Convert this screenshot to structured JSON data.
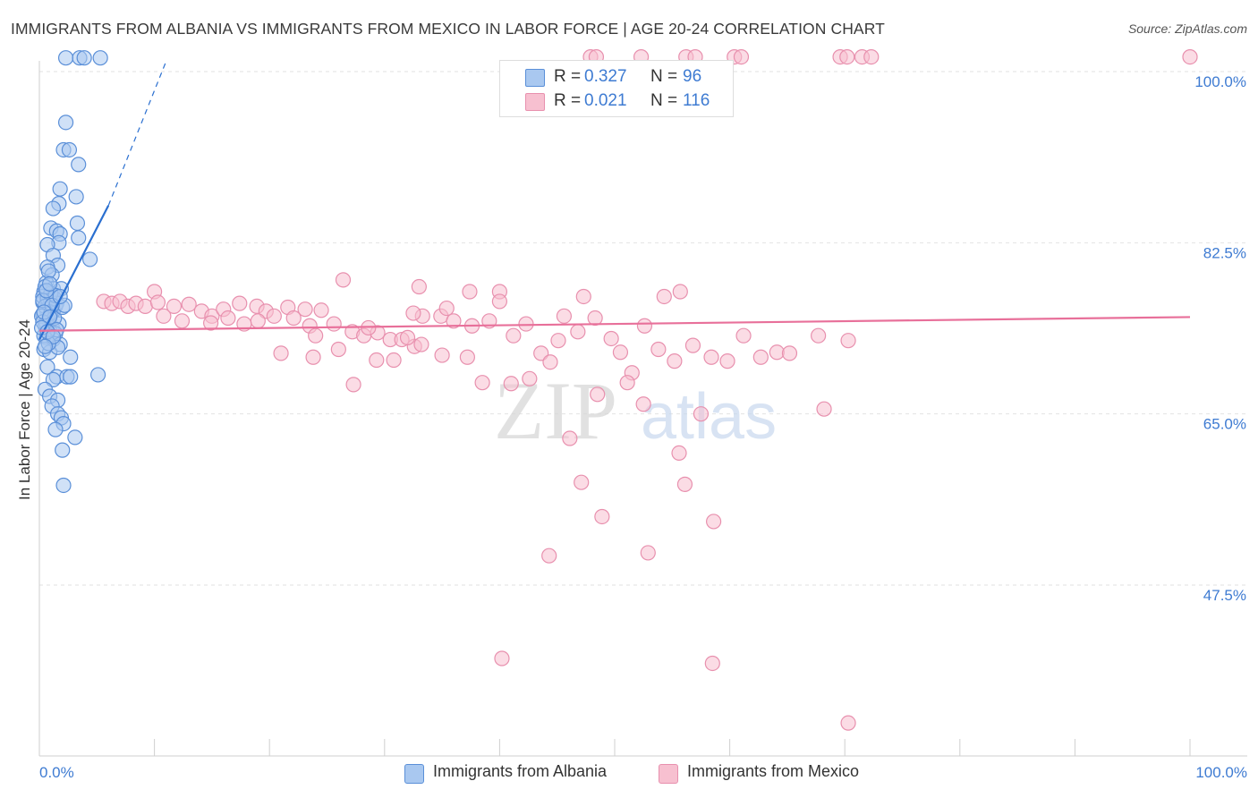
{
  "title": "IMMIGRANTS FROM ALBANIA VS IMMIGRANTS FROM MEXICO IN LABOR FORCE | AGE 20-24 CORRELATION CHART",
  "source": "Source: ZipAtlas.com",
  "watermark": {
    "zip": "ZIP",
    "atlas": "atlas"
  },
  "colors": {
    "albania_fill": "#a9c8f0",
    "albania_stroke": "#5a8fd8",
    "albania_line": "#2a6fd0",
    "mexico_fill": "#f7c0d0",
    "mexico_stroke": "#e890ae",
    "mexico_line": "#e8709a",
    "axis_text": "#3e7bd2",
    "grid": "#e2e2e2"
  },
  "legend_top": [
    {
      "r_label": "R =",
      "r_value": "0.327",
      "n_label": "N =",
      "n_value": "96"
    },
    {
      "r_label": "R =",
      "r_value": "0.021",
      "n_label": "N =",
      "n_value": "116"
    }
  ],
  "legend_bottom": [
    "Immigrants from Albania",
    "Immigrants from Mexico"
  ],
  "chart_data": {
    "type": "scatter",
    "title": "IMMIGRANTS FROM ALBANIA VS IMMIGRANTS FROM MEXICO IN LABOR FORCE | AGE 20-24 CORRELATION CHART",
    "xlabel": "",
    "ylabel": "In Labor Force | Age 20-24",
    "xlim": [
      0,
      100
    ],
    "ylim": [
      29,
      102
    ],
    "x_tick_labels": [
      "0.0%",
      "100.0%"
    ],
    "y_ticks": [
      47.5,
      65.0,
      82.5,
      100.0
    ],
    "y_tick_labels": [
      "47.5%",
      "65.0%",
      "82.5%",
      "100.0%"
    ],
    "series": [
      {
        "name": "Immigrants from Albania",
        "R": 0.327,
        "N": 96,
        "trend": {
          "x": [
            0.0,
            6.0
          ],
          "y": [
            72.6,
            86.3
          ]
        },
        "trend_dashed": {
          "x": [
            6.0,
            11.0
          ],
          "y": [
            86.3,
            101.0
          ]
        },
        "points": [
          [
            2.3,
            101.4
          ],
          [
            3.5,
            101.4
          ],
          [
            3.9,
            101.4
          ],
          [
            5.3,
            101.4
          ],
          [
            2.3,
            94.8
          ],
          [
            2.1,
            92.0
          ],
          [
            2.6,
            92.0
          ],
          [
            3.4,
            90.5
          ],
          [
            1.8,
            88.0
          ],
          [
            3.2,
            87.2
          ],
          [
            1.7,
            86.5
          ],
          [
            1.2,
            86.0
          ],
          [
            3.3,
            84.5
          ],
          [
            1.0,
            84.0
          ],
          [
            1.5,
            83.7
          ],
          [
            1.8,
            83.4
          ],
          [
            3.4,
            83.0
          ],
          [
            1.7,
            82.5
          ],
          [
            0.7,
            82.3
          ],
          [
            1.2,
            81.2
          ],
          [
            1.6,
            80.2
          ],
          [
            4.4,
            80.8
          ],
          [
            0.7,
            80.0
          ],
          [
            1.1,
            79.2
          ],
          [
            0.6,
            78.4
          ],
          [
            1.2,
            77.8
          ],
          [
            0.4,
            77.5
          ],
          [
            0.9,
            77.0
          ],
          [
            1.9,
            77.8
          ],
          [
            0.3,
            76.4
          ],
          [
            0.8,
            76.2
          ],
          [
            1.4,
            76.0
          ],
          [
            0.6,
            75.7
          ],
          [
            1.2,
            75.5
          ],
          [
            0.3,
            75.2
          ],
          [
            0.8,
            74.6
          ],
          [
            0.5,
            74.0
          ],
          [
            1.1,
            73.9
          ],
          [
            1.7,
            74.2
          ],
          [
            0.9,
            73.5
          ],
          [
            1.4,
            73.2
          ],
          [
            0.6,
            72.8
          ],
          [
            1.2,
            72.6
          ],
          [
            1.8,
            72.1
          ],
          [
            0.4,
            71.6
          ],
          [
            0.9,
            71.3
          ],
          [
            1.6,
            71.8
          ],
          [
            2.7,
            70.8
          ],
          [
            0.7,
            69.8
          ],
          [
            5.1,
            69.0
          ],
          [
            1.5,
            68.8
          ],
          [
            2.4,
            68.8
          ],
          [
            2.7,
            68.8
          ],
          [
            1.2,
            68.5
          ],
          [
            0.5,
            67.5
          ],
          [
            0.9,
            66.8
          ],
          [
            1.6,
            66.4
          ],
          [
            1.1,
            65.8
          ],
          [
            1.6,
            65.0
          ],
          [
            1.9,
            64.6
          ],
          [
            2.1,
            64.0
          ],
          [
            1.4,
            63.4
          ],
          [
            3.1,
            62.6
          ],
          [
            2.0,
            61.3
          ],
          [
            2.1,
            57.7
          ],
          [
            0.3,
            77.0
          ],
          [
            0.7,
            76.8
          ],
          [
            1.0,
            76.5
          ],
          [
            0.5,
            76.0
          ],
          [
            1.3,
            76.8
          ],
          [
            0.2,
            75.0
          ],
          [
            0.6,
            74.3
          ],
          [
            1.0,
            75.3
          ],
          [
            1.5,
            76.3
          ],
          [
            0.4,
            73.0
          ],
          [
            0.8,
            72.2
          ],
          [
            1.3,
            74.8
          ],
          [
            2.0,
            75.9
          ],
          [
            0.3,
            74.4
          ],
          [
            1.0,
            77.3
          ],
          [
            0.5,
            78.0
          ],
          [
            1.4,
            77.1
          ],
          [
            0.8,
            79.6
          ],
          [
            2.2,
            76.1
          ],
          [
            0.3,
            76.6
          ],
          [
            0.6,
            77.6
          ],
          [
            1.1,
            76.1
          ],
          [
            0.4,
            75.4
          ],
          [
            0.9,
            74.9
          ],
          [
            1.5,
            73.6
          ],
          [
            0.2,
            73.8
          ],
          [
            0.7,
            73.4
          ],
          [
            1.2,
            72.9
          ],
          [
            0.5,
            71.9
          ],
          [
            1.8,
            77.0
          ],
          [
            0.9,
            78.3
          ]
        ]
      },
      {
        "name": "Immigrants from Mexico",
        "R": 0.021,
        "N": 116,
        "trend": {
          "x": [
            0.0,
            100.0
          ],
          "y": [
            73.5,
            74.9
          ]
        },
        "points": [
          [
            47.9,
            101.5
          ],
          [
            48.4,
            101.5
          ],
          [
            52.3,
            101.5
          ],
          [
            56.2,
            101.5
          ],
          [
            57.0,
            101.5
          ],
          [
            60.4,
            101.5
          ],
          [
            61.0,
            101.5
          ],
          [
            69.6,
            101.5
          ],
          [
            70.2,
            101.5
          ],
          [
            71.5,
            101.5
          ],
          [
            72.3,
            101.5
          ],
          [
            100.0,
            101.5
          ],
          [
            26.4,
            78.7
          ],
          [
            33.0,
            78.0
          ],
          [
            37.4,
            77.5
          ],
          [
            40.0,
            77.5
          ],
          [
            47.3,
            77.0
          ],
          [
            54.3,
            77.0
          ],
          [
            55.7,
            77.5
          ],
          [
            10.0,
            77.5
          ],
          [
            5.6,
            76.5
          ],
          [
            6.3,
            76.3
          ],
          [
            7.0,
            76.5
          ],
          [
            7.7,
            76.0
          ],
          [
            8.4,
            76.3
          ],
          [
            9.2,
            76.0
          ],
          [
            10.3,
            76.4
          ],
          [
            11.7,
            76.0
          ],
          [
            13.0,
            76.2
          ],
          [
            14.1,
            75.5
          ],
          [
            15.0,
            75.0
          ],
          [
            16.0,
            75.7
          ],
          [
            17.4,
            76.3
          ],
          [
            18.9,
            76.0
          ],
          [
            19.7,
            75.5
          ],
          [
            21.6,
            75.9
          ],
          [
            23.1,
            75.7
          ],
          [
            24.5,
            75.6
          ],
          [
            10.8,
            75.0
          ],
          [
            12.4,
            74.5
          ],
          [
            14.9,
            74.3
          ],
          [
            16.4,
            74.8
          ],
          [
            17.8,
            74.2
          ],
          [
            19.0,
            74.5
          ],
          [
            20.4,
            75.0
          ],
          [
            22.1,
            74.8
          ],
          [
            23.5,
            74.0
          ],
          [
            24.0,
            73.0
          ],
          [
            25.6,
            74.2
          ],
          [
            27.2,
            73.4
          ],
          [
            28.2,
            73.0
          ],
          [
            29.4,
            73.3
          ],
          [
            30.5,
            72.6
          ],
          [
            31.5,
            72.6
          ],
          [
            32.6,
            71.9
          ],
          [
            33.2,
            72.1
          ],
          [
            33.3,
            75.0
          ],
          [
            34.9,
            75.0
          ],
          [
            36.0,
            74.5
          ],
          [
            37.6,
            74.0
          ],
          [
            39.1,
            74.5
          ],
          [
            40.0,
            76.5
          ],
          [
            41.2,
            73.0
          ],
          [
            42.3,
            74.2
          ],
          [
            43.6,
            71.2
          ],
          [
            44.4,
            70.3
          ],
          [
            45.1,
            72.5
          ],
          [
            45.6,
            75.0
          ],
          [
            46.8,
            73.4
          ],
          [
            48.3,
            74.8
          ],
          [
            49.7,
            72.7
          ],
          [
            50.5,
            71.3
          ],
          [
            51.5,
            69.2
          ],
          [
            52.6,
            74.0
          ],
          [
            53.8,
            71.6
          ],
          [
            55.2,
            70.4
          ],
          [
            56.8,
            72.0
          ],
          [
            58.4,
            70.8
          ],
          [
            59.8,
            70.4
          ],
          [
            61.2,
            73.0
          ],
          [
            62.7,
            70.8
          ],
          [
            64.1,
            71.3
          ],
          [
            65.2,
            71.2
          ],
          [
            67.7,
            73.0
          ],
          [
            70.3,
            72.5
          ],
          [
            21.0,
            71.2
          ],
          [
            23.8,
            70.8
          ],
          [
            26.0,
            71.6
          ],
          [
            27.3,
            68.0
          ],
          [
            29.3,
            70.5
          ],
          [
            30.8,
            70.5
          ],
          [
            32.0,
            72.8
          ],
          [
            37.2,
            70.8
          ],
          [
            38.5,
            68.2
          ],
          [
            41.0,
            68.1
          ],
          [
            42.6,
            68.6
          ],
          [
            48.5,
            67.0
          ],
          [
            51.1,
            68.2
          ],
          [
            52.5,
            66.0
          ],
          [
            57.5,
            65.0
          ],
          [
            68.2,
            65.5
          ],
          [
            35.0,
            71.0
          ],
          [
            46.1,
            62.5
          ],
          [
            55.6,
            61.0
          ],
          [
            47.1,
            58.0
          ],
          [
            56.1,
            57.8
          ],
          [
            48.9,
            54.5
          ],
          [
            58.6,
            54.0
          ],
          [
            44.3,
            50.5
          ],
          [
            52.9,
            50.8
          ],
          [
            40.2,
            40.0
          ],
          [
            58.5,
            39.5
          ],
          [
            70.3,
            33.4
          ],
          [
            32.5,
            75.3
          ],
          [
            28.6,
            73.8
          ],
          [
            35.4,
            75.8
          ]
        ]
      }
    ]
  }
}
